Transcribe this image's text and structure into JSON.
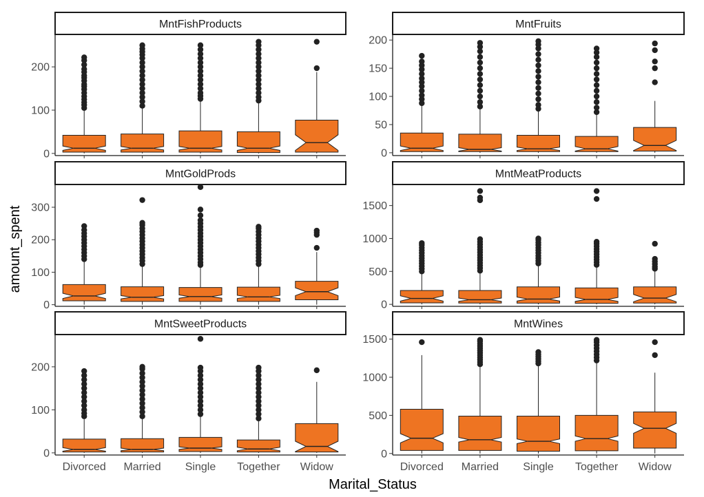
{
  "chart_data": {
    "type": "boxplot",
    "style": {
      "fill": "#EE7422",
      "stroke": "#222222",
      "outlier": "#222222",
      "notched": true,
      "grid": false
    },
    "xlabel": "Marital_Status",
    "ylabel": "amount_spent",
    "categories": [
      "Divorced",
      "Married",
      "Single",
      "Together",
      "Widow"
    ],
    "panels": [
      {
        "title": "MntFishProducts",
        "ylim": [
          -5,
          275
        ],
        "yticks": [
          0,
          100,
          200
        ],
        "boxes": [
          {
            "q1": 3,
            "median": 12,
            "q3": 42,
            "whisker_low": 0,
            "whisker_high": 100,
            "notch": 5,
            "outliers": [
              105,
              112,
              118,
              125,
              132,
              140,
              148,
              155,
              160,
              168,
              175,
              180,
              188,
              195,
              205,
              215,
              222
            ]
          },
          {
            "q1": 3,
            "median": 12,
            "q3": 45,
            "whisker_low": 0,
            "whisker_high": 107,
            "notch": 4,
            "outliers": [
              110,
              120,
              130,
              140,
              150,
              160,
              170,
              180,
              190,
              200,
              210,
              220,
              228,
              235,
              242,
              250
            ]
          },
          {
            "q1": 3,
            "median": 12,
            "q3": 52,
            "whisker_low": 0,
            "whisker_high": 122,
            "notch": 4,
            "outliers": [
              126,
              133,
              140,
              150,
              160,
              170,
              180,
              190,
              200,
              210,
              220,
              230,
              240,
              250
            ]
          },
          {
            "q1": 2,
            "median": 12,
            "q3": 50,
            "whisker_low": 0,
            "whisker_high": 118,
            "notch": 5,
            "outliers": [
              122,
              130,
              140,
              150,
              160,
              170,
              180,
              190,
              200,
              210,
              220,
              230,
              240,
              250,
              258
            ]
          },
          {
            "q1": 3,
            "median": 25,
            "q3": 77,
            "whisker_low": 0,
            "whisker_high": 188,
            "notch": 18,
            "outliers": [
              197,
              258
            ]
          }
        ]
      },
      {
        "title": "MntFruits",
        "ylim": [
          -5,
          210
        ],
        "yticks": [
          0,
          50,
          100,
          150,
          200
        ],
        "boxes": [
          {
            "q1": 2,
            "median": 8,
            "q3": 35,
            "whisker_low": 0,
            "whisker_high": 85,
            "notch": 4,
            "outliers": [
              88,
              95,
              102,
              110,
              118,
              125,
              132,
              140,
              148,
              155,
              162,
              172
            ]
          },
          {
            "q1": 2,
            "median": 6,
            "q3": 33,
            "whisker_low": 0,
            "whisker_high": 80,
            "notch": 3,
            "outliers": [
              82,
              90,
              100,
              110,
              120,
              130,
              140,
              150,
              160,
              170,
              180,
              188,
              195
            ]
          },
          {
            "q1": 2,
            "median": 7,
            "q3": 31,
            "whisker_low": 0,
            "whisker_high": 75,
            "notch": 3,
            "outliers": [
              78,
              85,
              95,
              105,
              115,
              125,
              135,
              145,
              155,
              165,
              175,
              185,
              192,
              198
            ]
          },
          {
            "q1": 2,
            "median": 7,
            "q3": 29,
            "whisker_low": 0,
            "whisker_high": 70,
            "notch": 4,
            "outliers": [
              72,
              80,
              90,
              100,
              110,
              120,
              130,
              140,
              150,
              160,
              170,
              178,
              185
            ]
          },
          {
            "q1": 3,
            "median": 13,
            "q3": 45,
            "whisker_low": 0,
            "whisker_high": 92,
            "notch": 9,
            "outliers": [
              125,
              150,
              162,
              182,
              194
            ]
          }
        ]
      },
      {
        "title": "MntGoldProds",
        "ylim": [
          -5,
          370
        ],
        "yticks": [
          0,
          100,
          200,
          300
        ],
        "boxes": [
          {
            "q1": 12,
            "median": 27,
            "q3": 62,
            "whisker_low": 0,
            "whisker_high": 134,
            "notch": 8,
            "outliers": [
              140,
              150,
              160,
              170,
              180,
              190,
              200,
              210,
              220,
              230,
              242
            ]
          },
          {
            "q1": 10,
            "median": 23,
            "q3": 55,
            "whisker_low": 0,
            "whisker_high": 120,
            "notch": 5,
            "outliers": [
              125,
              135,
              145,
              155,
              165,
              175,
              185,
              195,
              205,
              215,
              225,
              235,
              245,
              252,
              322
            ]
          },
          {
            "q1": 10,
            "median": 25,
            "q3": 53,
            "whisker_low": 0,
            "whisker_high": 118,
            "notch": 5,
            "outliers": [
              122,
              130,
              140,
              150,
              160,
              170,
              180,
              190,
              200,
              210,
              220,
              230,
              240,
              250,
              260,
              275,
              293,
              362
            ]
          },
          {
            "q1": 10,
            "median": 24,
            "q3": 54,
            "whisker_low": 0,
            "whisker_high": 120,
            "notch": 5,
            "outliers": [
              125,
              135,
              145,
              155,
              165,
              175,
              185,
              195,
              205,
              215,
              225,
              235,
              240
            ]
          },
          {
            "q1": 15,
            "median": 40,
            "q3": 72,
            "whisker_low": 0,
            "whisker_high": 162,
            "notch": 12,
            "outliers": [
              175,
              215,
              222,
              228
            ]
          }
        ]
      },
      {
        "title": "MntMeatProducts",
        "ylim": [
          -30,
          1820
        ],
        "yticks": [
          0,
          500,
          1000,
          1500
        ],
        "boxes": [
          {
            "q1": 22,
            "median": 90,
            "q3": 210,
            "whisker_low": 0,
            "whisker_high": 480,
            "notch": 40,
            "outliers": [
              500,
              540,
              580,
              620,
              660,
              700,
              740,
              780,
              820,
              860,
              900,
              930
            ]
          },
          {
            "q1": 20,
            "median": 70,
            "q3": 210,
            "whisker_low": 0,
            "whisker_high": 490,
            "notch": 25,
            "outliers": [
              510,
              550,
              590,
              630,
              670,
              710,
              750,
              790,
              830,
              870,
              910,
              950,
              990,
              1580,
              1620,
              1720
            ]
          },
          {
            "q1": 18,
            "median": 80,
            "q3": 265,
            "whisker_low": 0,
            "whisker_high": 600,
            "notch": 30,
            "outliers": [
              620,
              660,
              700,
              740,
              780,
              820,
              860,
              900,
              940,
              980,
              1000
            ]
          },
          {
            "q1": 16,
            "median": 75,
            "q3": 250,
            "whisker_low": 0,
            "whisker_high": 580,
            "notch": 30,
            "outliers": [
              600,
              640,
              680,
              720,
              760,
              800,
              840,
              880,
              920,
              950,
              1600,
              1720
            ]
          },
          {
            "q1": 20,
            "median": 95,
            "q3": 265,
            "whisker_low": 0,
            "whisker_high": 520,
            "notch": 55,
            "outliers": [
              540,
              570,
              610,
              650,
              690,
              920
            ]
          }
        ]
      },
      {
        "title": "MntSweetProducts",
        "ylim": [
          -5,
          275
        ],
        "yticks": [
          0,
          100,
          200
        ],
        "boxes": [
          {
            "q1": 2,
            "median": 8,
            "q3": 32,
            "whisker_low": 0,
            "whisker_high": 78,
            "notch": 4,
            "outliers": [
              85,
              92,
              100,
              110,
              120,
              130,
              140,
              150,
              160,
              170,
              180,
              190
            ]
          },
          {
            "q1": 2,
            "median": 8,
            "q3": 33,
            "whisker_low": 0,
            "whisker_high": 80,
            "notch": 3,
            "outliers": [
              85,
              95,
              105,
              115,
              125,
              135,
              145,
              155,
              165,
              175,
              185,
              195,
              200
            ]
          },
          {
            "q1": 3,
            "median": 11,
            "q3": 36,
            "whisker_low": 0,
            "whisker_high": 85,
            "notch": 3,
            "outliers": [
              90,
              100,
              110,
              120,
              130,
              140,
              150,
              160,
              170,
              180,
              190,
              198,
              265
            ]
          },
          {
            "q1": 2,
            "median": 9,
            "q3": 30,
            "whisker_low": 0,
            "whisker_high": 75,
            "notch": 4,
            "outliers": [
              80,
              90,
              100,
              110,
              120,
              130,
              140,
              150,
              160,
              170,
              180,
              190,
              198
            ]
          },
          {
            "q1": 2,
            "median": 15,
            "q3": 68,
            "whisker_low": 0,
            "whisker_high": 165,
            "notch": 12,
            "outliers": [
              192
            ]
          }
        ]
      },
      {
        "title": "MntWines",
        "ylim": [
          -20,
          1560
        ],
        "yticks": [
          0,
          500,
          1000,
          1500
        ],
        "boxes": [
          {
            "q1": 40,
            "median": 200,
            "q3": 580,
            "whisker_low": 0,
            "whisker_high": 1290,
            "notch": 60,
            "outliers": [
              1460
            ]
          },
          {
            "q1": 40,
            "median": 180,
            "q3": 490,
            "whisker_low": 0,
            "whisker_high": 1150,
            "notch": 30,
            "outliers": [
              1170,
              1200,
              1230,
              1260,
              1290,
              1320,
              1350,
              1380,
              1410,
              1440,
              1470,
              1490
            ]
          },
          {
            "q1": 30,
            "median": 160,
            "q3": 490,
            "whisker_low": 0,
            "whisker_high": 1160,
            "notch": 30,
            "outliers": [
              1180,
              1210,
              1240,
              1270,
              1300,
              1330
            ]
          },
          {
            "q1": 35,
            "median": 195,
            "q3": 500,
            "whisker_low": 0,
            "whisker_high": 1200,
            "notch": 35,
            "outliers": [
              1220,
              1260,
              1300,
              1340,
              1380,
              1420,
              1460,
              1490
            ]
          },
          {
            "q1": 70,
            "median": 330,
            "q3": 545,
            "whisker_low": 0,
            "whisker_high": 1060,
            "notch": 65,
            "outliers": [
              1290,
              1460
            ]
          }
        ]
      }
    ]
  }
}
